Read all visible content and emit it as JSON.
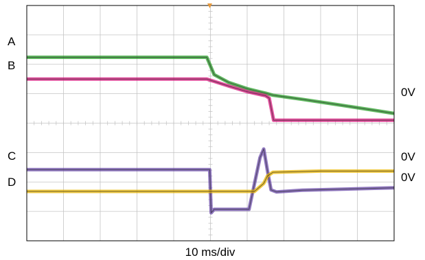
{
  "chart_data": {
    "type": "line",
    "xlabel": "10 ms/div",
    "grid": true,
    "x_divisions": 10,
    "y_divisions": 8,
    "channel_labels": [
      "A",
      "B",
      "C",
      "D"
    ],
    "zero_labels": [
      "0V",
      "0V",
      "0V"
    ],
    "colors": {
      "A": "#2a9d2a",
      "B": "#d4147a",
      "C": "#6a4aa8",
      "D": "#e8b400",
      "trigger": "#e89a3c",
      "grid": "#c4c4c4",
      "frame": "#000000"
    },
    "series": [
      {
        "key": "A",
        "x": [
          0,
          4.9,
          5.1,
          5.5,
          6.0,
          6.5,
          6.7,
          7.5,
          8.5,
          9.5,
          10
        ],
        "y": [
          6.24,
          6.24,
          5.65,
          5.38,
          5.17,
          5.02,
          4.95,
          4.81,
          4.62,
          4.43,
          4.33
        ]
      },
      {
        "key": "B",
        "x": [
          0,
          4.9,
          5.1,
          5.5,
          6.0,
          6.5,
          6.6,
          6.72,
          7.5,
          8.5,
          10
        ],
        "y": [
          5.5,
          5.5,
          5.42,
          5.26,
          5.07,
          4.93,
          4.85,
          4.1,
          4.1,
          4.1,
          4.1
        ]
      },
      {
        "key": "C",
        "x": [
          0,
          4.98,
          5.02,
          5.1,
          5.9,
          6.05,
          6.35,
          6.45,
          6.55,
          6.65,
          6.8,
          7.5,
          10
        ],
        "y": [
          2.42,
          2.42,
          0.95,
          1.07,
          1.07,
          1.07,
          2.83,
          3.12,
          2.4,
          1.73,
          1.66,
          1.72,
          1.8
        ]
      },
      {
        "key": "D",
        "x": [
          0,
          6.2,
          6.45,
          6.55,
          6.7,
          8,
          10
        ],
        "y": [
          1.68,
          1.68,
          1.95,
          2.2,
          2.33,
          2.37,
          2.37
        ]
      }
    ]
  }
}
